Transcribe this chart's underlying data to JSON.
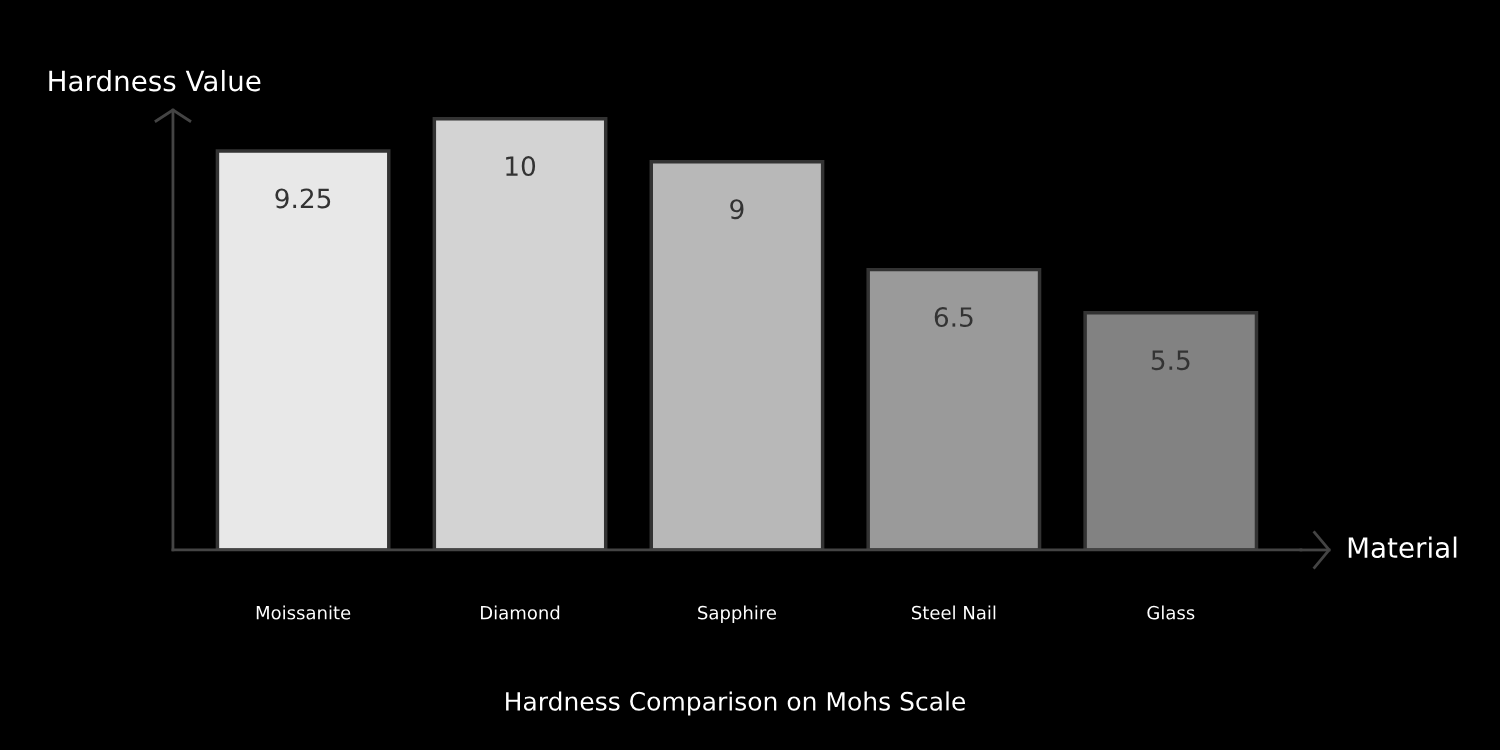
{
  "chart_data": {
    "type": "bar",
    "title": "Hardness Comparison on Mohs Scale",
    "xlabel": "Material",
    "ylabel": "Hardness Value",
    "categories": [
      "Moissanite",
      "Diamond",
      "Sapphire",
      "Steel Nail",
      "Glass"
    ],
    "values": [
      9.25,
      10,
      9,
      6.5,
      5.5
    ],
    "colors": [
      "#e8e8e8",
      "#d3d3d3",
      "#b8b8b8",
      "#9a9a9a",
      "#828282"
    ],
    "ylim": [
      0,
      10.2
    ],
    "data_labels": true,
    "grid": false,
    "legend": false,
    "tick_labels": "x"
  }
}
